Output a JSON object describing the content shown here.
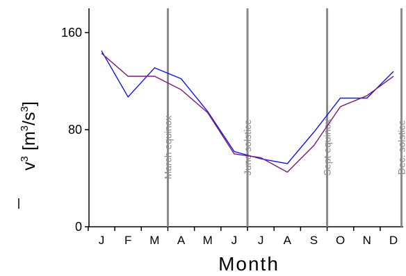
{
  "chart_data": {
    "type": "line",
    "categories": [
      "J",
      "F",
      "M",
      "A",
      "M",
      "J",
      "J",
      "A",
      "S",
      "O",
      "N",
      "D"
    ],
    "series": [
      {
        "color": "#1414e6",
        "values": [
          145,
          107,
          131,
          122,
          95,
          62,
          56,
          52,
          78,
          106,
          106,
          128
        ]
      },
      {
        "color": "#7a1a7a",
        "values": [
          143,
          124,
          124,
          113,
          94,
          60,
          57,
          45,
          67,
          99,
          108,
          124
        ]
      }
    ],
    "ylim": [
      0,
      180
    ],
    "yticks": [
      0,
      80,
      160
    ],
    "xlabel": "Month",
    "ylabel": {
      "symbol": "v",
      "power": "3",
      "unit_open": "[m",
      "unit_mid": "/s",
      "unit_close": "]"
    },
    "markers": [
      {
        "label": "March equinox",
        "position": 2.5
      },
      {
        "label": "June solstice",
        "position": 5.5
      },
      {
        "label": "Sept equinox",
        "position": 8.5
      },
      {
        "label": "Dec. solstice",
        "position": 11.3
      }
    ],
    "marker_color": "#8a8a8a",
    "axis_color": "#000000",
    "grid": false
  }
}
